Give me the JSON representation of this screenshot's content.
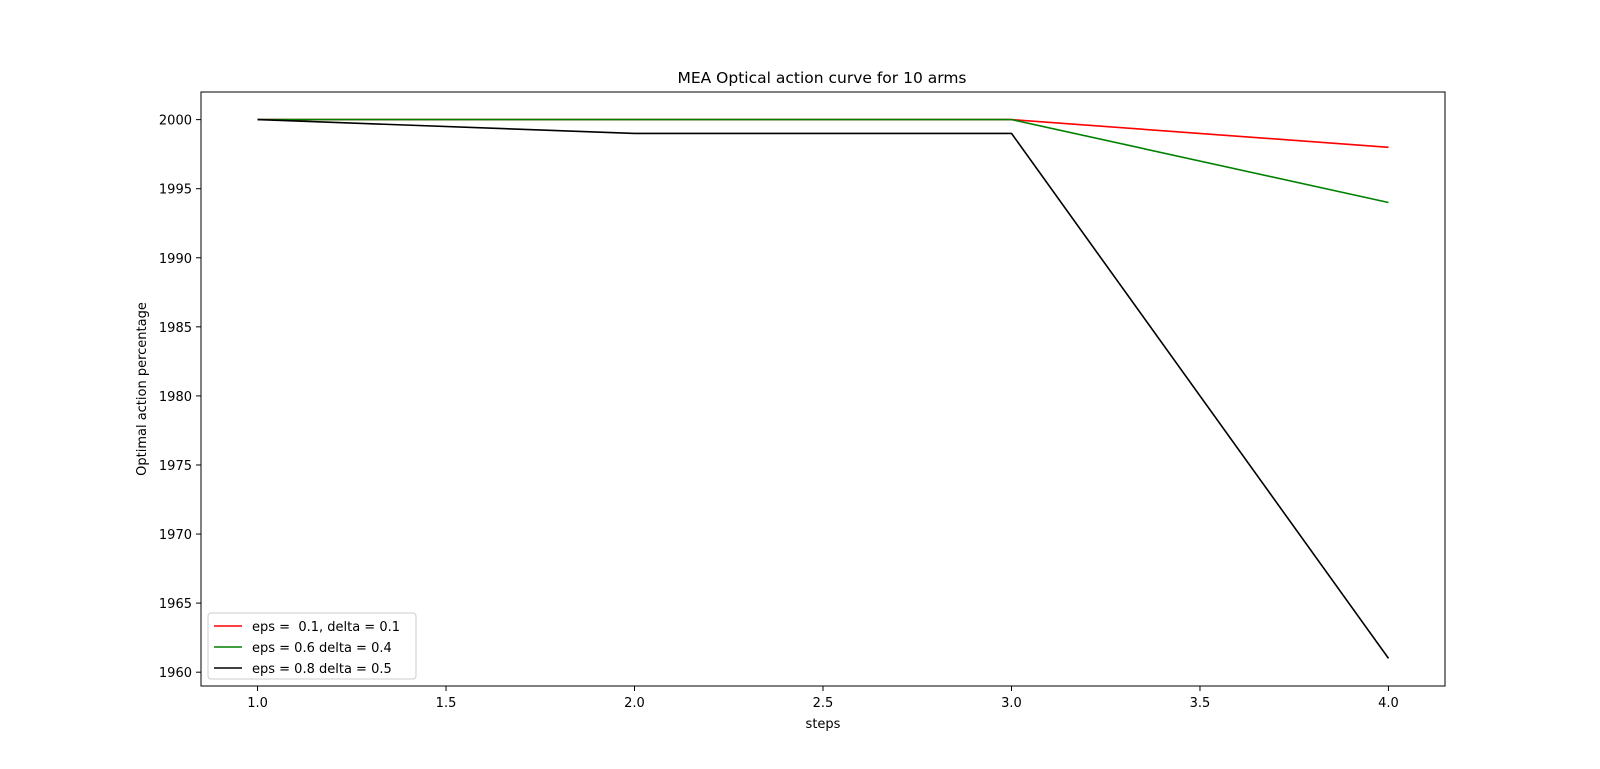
{
  "chart_data": {
    "type": "line",
    "title": "MEA Optical action curve for 10 arms",
    "xlabel": "steps",
    "ylabel": "Optimal action percentage",
    "x": [
      1.0,
      2.0,
      3.0,
      4.0
    ],
    "xlim": [
      0.85,
      4.15
    ],
    "ylim": [
      1959,
      2002
    ],
    "xticks": [
      1.0,
      1.5,
      2.0,
      2.5,
      3.0,
      3.5,
      4.0
    ],
    "xtick_labels": [
      "1.0",
      "1.5",
      "2.0",
      "2.5",
      "3.0",
      "3.5",
      "4.0"
    ],
    "yticks": [
      1960,
      1965,
      1970,
      1975,
      1980,
      1985,
      1990,
      1995,
      2000
    ],
    "ytick_labels": [
      "1960",
      "1965",
      "1970",
      "1975",
      "1980",
      "1985",
      "1990",
      "1995",
      "2000"
    ],
    "grid": false,
    "legend_position": "lower-left",
    "series": [
      {
        "name": "eps =  0.1, delta = 0.1",
        "color": "#ff0000",
        "values": [
          2000,
          2000,
          2000,
          1998
        ]
      },
      {
        "name": "eps = 0.6 delta = 0.4",
        "color": "#008000",
        "values": [
          2000,
          2000,
          2000,
          1994
        ]
      },
      {
        "name": "eps = 0.8 delta = 0.5",
        "color": "#000000",
        "values": [
          2000,
          1999,
          1999,
          1961
        ]
      }
    ]
  }
}
